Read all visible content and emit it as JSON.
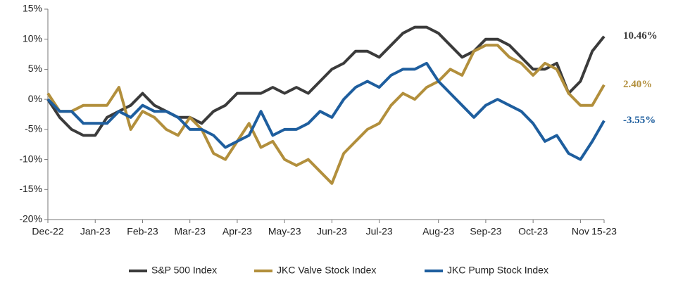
{
  "chart_data": {
    "type": "line",
    "categories": [
      "Dec-22",
      null,
      null,
      null,
      "Jan-23",
      null,
      null,
      null,
      "Feb-23",
      null,
      null,
      null,
      "Mar-23",
      null,
      null,
      null,
      "Apr-23",
      null,
      null,
      null,
      "May-23",
      null,
      null,
      null,
      "Jun-23",
      null,
      null,
      null,
      "Jul-23",
      null,
      null,
      null,
      null,
      "Aug-23",
      null,
      null,
      null,
      "Sep-23",
      null,
      null,
      null,
      "Oct-23",
      null,
      null,
      null,
      "Nov",
      null,
      "15-23"
    ],
    "ylim": [
      -20,
      15
    ],
    "yticks": [
      {
        "value": -20,
        "label": "-20%"
      },
      {
        "value": -15,
        "label": "-15%"
      },
      {
        "value": -10,
        "label": "-10%"
      },
      {
        "value": -5,
        "label": "-5%"
      },
      {
        "value": 0,
        "label": "0%"
      },
      {
        "value": 5,
        "label": "5%"
      },
      {
        "value": 10,
        "label": "10%"
      },
      {
        "value": 15,
        "label": "15%"
      }
    ],
    "grid": false,
    "legend": "bottom",
    "series": [
      {
        "name": "S&P 500 Index",
        "color": "#3b3b3b",
        "values": [
          0,
          -3,
          -5,
          -6,
          -6,
          -3,
          -2,
          -1,
          1,
          -1,
          -2,
          -3,
          -3,
          -4,
          -2,
          -1,
          1,
          1,
          1,
          2,
          1,
          2,
          1,
          3,
          5,
          6,
          8,
          8,
          7,
          9,
          11,
          12,
          12,
          11,
          9,
          7,
          8,
          10,
          10,
          9,
          7,
          5,
          5,
          6,
          1,
          3,
          8,
          10.46
        ],
        "value_labels": [
          null,
          null,
          null,
          null,
          null,
          null,
          null,
          null,
          null,
          null,
          null,
          null,
          null,
          null,
          null,
          null,
          null,
          null,
          null,
          null,
          null,
          null,
          null,
          null,
          null,
          null,
          null,
          null,
          null,
          null,
          null,
          null,
          null,
          null,
          null,
          null,
          null,
          null,
          null,
          null,
          null,
          null,
          null,
          null,
          null,
          null,
          null,
          "10.46%"
        ]
      },
      {
        "name": "JKC Valve Stock Index",
        "color": "#b28f3c",
        "values": [
          1,
          -2,
          -2,
          -1,
          -1,
          -1,
          2,
          -5,
          -2,
          -3,
          -5,
          -6,
          -3,
          -5,
          -9,
          -10,
          -7,
          -4,
          -8,
          -7,
          -10,
          -11,
          -10,
          -12,
          -14,
          -9,
          -7,
          -5,
          -4,
          -1,
          1,
          0,
          2,
          3,
          5,
          4,
          8,
          9,
          9,
          7,
          6,
          4,
          6,
          5,
          1,
          -1,
          -1,
          2.4
        ],
        "value_labels": [
          null,
          null,
          null,
          null,
          null,
          null,
          null,
          null,
          null,
          null,
          null,
          null,
          null,
          null,
          null,
          null,
          null,
          null,
          null,
          null,
          null,
          null,
          null,
          null,
          null,
          null,
          null,
          null,
          null,
          null,
          null,
          null,
          null,
          null,
          null,
          null,
          null,
          null,
          null,
          null,
          null,
          null,
          null,
          null,
          null,
          null,
          null,
          "2.40%"
        ]
      },
      {
        "name": "JKC Pump Stock Index",
        "color": "#1e5e9e",
        "values": [
          0,
          -2,
          -2,
          -4,
          -4,
          -4,
          -2,
          -3,
          -1,
          -2,
          -2,
          -3,
          -5,
          -5,
          -6,
          -8,
          -7,
          -6,
          -2,
          -6,
          -5,
          -5,
          -4,
          -2,
          -3,
          0,
          2,
          3,
          2,
          4,
          5,
          5,
          6,
          3,
          1,
          -1,
          -3,
          -1,
          0,
          -1,
          -2,
          -4,
          -7,
          -6,
          -9,
          -10,
          -7,
          -3.55
        ],
        "value_labels": [
          null,
          null,
          null,
          null,
          null,
          null,
          null,
          null,
          null,
          null,
          null,
          null,
          null,
          null,
          null,
          null,
          null,
          null,
          null,
          null,
          null,
          null,
          null,
          null,
          null,
          null,
          null,
          null,
          null,
          null,
          null,
          null,
          null,
          null,
          null,
          null,
          null,
          null,
          null,
          null,
          null,
          null,
          null,
          null,
          null,
          null,
          null,
          "-3.55%"
        ]
      }
    ]
  }
}
